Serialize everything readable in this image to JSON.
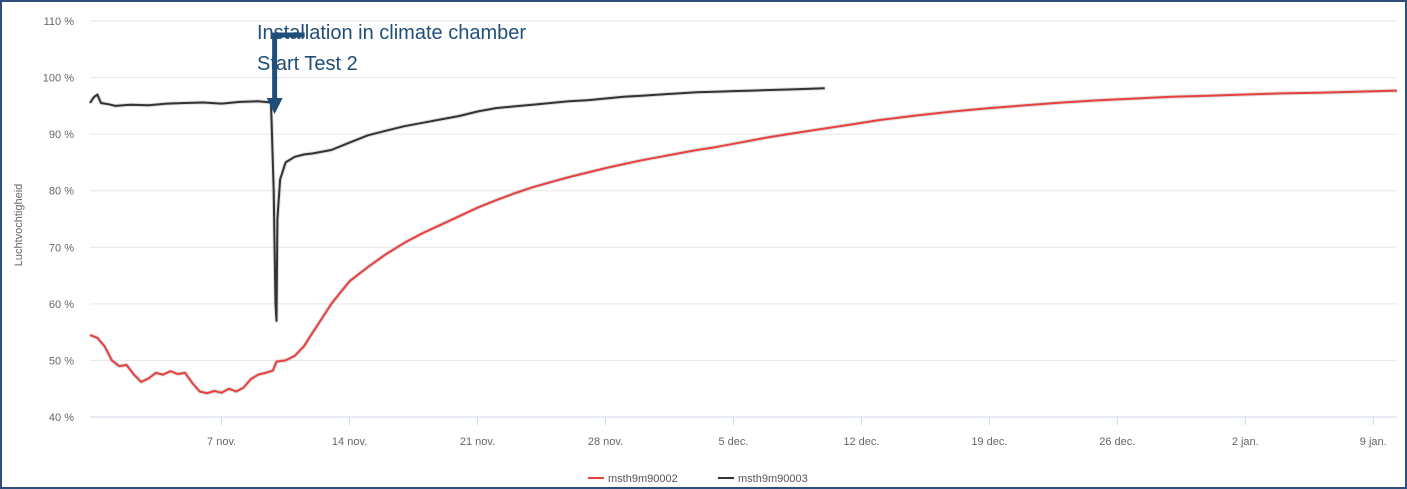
{
  "chart_data": {
    "type": "line",
    "ylabel": "Luchtvochtigheid",
    "ylim": [
      40,
      110
    ],
    "y_ticks": [
      40,
      50,
      60,
      70,
      80,
      90,
      100,
      110
    ],
    "y_tick_labels": [
      "40 %",
      "50 %",
      "60 %",
      "70 %",
      "80 %",
      "90 %",
      "100 %",
      "110 %"
    ],
    "xlim": [
      -5.2,
      66.3
    ],
    "x_ticks": [
      2,
      9,
      16,
      23,
      30,
      37,
      44,
      51,
      58,
      65
    ],
    "x_tick_labels": [
      "7 nov.",
      "14 nov.",
      "21 nov.",
      "28 nov.",
      "5 dec.",
      "12 dec.",
      "19 dec.",
      "26 dec.",
      "2 jan.",
      "9 jan."
    ],
    "grid": true,
    "annotation": {
      "lines": [
        "Installation in climate chamber",
        "Start Test 2"
      ],
      "x": 4.9
    },
    "legend_position": "bottom-center",
    "series": [
      {
        "name": "msth9m90002",
        "color": "#e8403f",
        "points": [
          [
            -5.2,
            54.5
          ],
          [
            -4.8,
            54
          ],
          [
            -4.4,
            52.5
          ],
          [
            -4,
            50
          ],
          [
            -3.6,
            49
          ],
          [
            -3.2,
            49.2
          ],
          [
            -2.8,
            47.5
          ],
          [
            -2.4,
            46.2
          ],
          [
            -2,
            46.8
          ],
          [
            -1.6,
            47.8
          ],
          [
            -1.2,
            47.5
          ],
          [
            -0.8,
            48.1
          ],
          [
            -0.4,
            47.6
          ],
          [
            0,
            47.8
          ],
          [
            0.4,
            46
          ],
          [
            0.8,
            44.5
          ],
          [
            1.2,
            44.2
          ],
          [
            1.6,
            44.6
          ],
          [
            2,
            44.3
          ],
          [
            2.4,
            45
          ],
          [
            2.8,
            44.5
          ],
          [
            3.2,
            45.2
          ],
          [
            3.6,
            46.7
          ],
          [
            4,
            47.5
          ],
          [
            4.4,
            47.8
          ],
          [
            4.8,
            48.2
          ],
          [
            5,
            49.8
          ],
          [
            5.5,
            50
          ],
          [
            6,
            50.8
          ],
          [
            6.5,
            52.5
          ],
          [
            7,
            55
          ],
          [
            7.5,
            57.5
          ],
          [
            8,
            60
          ],
          [
            8.5,
            62
          ],
          [
            9,
            64
          ],
          [
            10,
            66.5
          ],
          [
            11,
            68.8
          ],
          [
            12,
            70.8
          ],
          [
            13,
            72.5
          ],
          [
            14,
            74
          ],
          [
            15,
            75.5
          ],
          [
            16,
            77
          ],
          [
            17,
            78.3
          ],
          [
            18,
            79.5
          ],
          [
            19,
            80.6
          ],
          [
            20,
            81.5
          ],
          [
            21,
            82.4
          ],
          [
            22,
            83.2
          ],
          [
            23,
            84
          ],
          [
            24,
            84.7
          ],
          [
            25,
            85.4
          ],
          [
            26,
            86
          ],
          [
            27,
            86.6
          ],
          [
            28,
            87.2
          ],
          [
            29,
            87.7
          ],
          [
            30,
            88.3
          ],
          [
            32,
            89.5
          ],
          [
            34,
            90.5
          ],
          [
            36,
            91.5
          ],
          [
            38,
            92.5
          ],
          [
            40,
            93.3
          ],
          [
            42,
            94
          ],
          [
            44,
            94.6
          ],
          [
            46,
            95.1
          ],
          [
            48,
            95.6
          ],
          [
            50,
            96
          ],
          [
            52,
            96.3
          ],
          [
            54,
            96.6
          ],
          [
            56,
            96.8
          ],
          [
            58,
            97
          ],
          [
            60,
            97.2
          ],
          [
            62,
            97.3
          ],
          [
            64,
            97.5
          ],
          [
            66.3,
            97.7
          ]
        ]
      },
      {
        "name": "msth9m90003",
        "color": "#333333",
        "points": [
          [
            -5.2,
            95.5
          ],
          [
            -5,
            96.5
          ],
          [
            -4.8,
            97
          ],
          [
            -4.6,
            95.5
          ],
          [
            -4.2,
            95.3
          ],
          [
            -3.8,
            95
          ],
          [
            -3,
            95.2
          ],
          [
            -2,
            95.1
          ],
          [
            -1,
            95.4
          ],
          [
            0,
            95.5
          ],
          [
            1,
            95.6
          ],
          [
            2,
            95.4
          ],
          [
            3,
            95.7
          ],
          [
            4,
            95.8
          ],
          [
            4.7,
            95.6
          ],
          [
            4.85,
            80
          ],
          [
            4.95,
            60
          ],
          [
            5.0,
            57
          ],
          [
            5.05,
            75
          ],
          [
            5.2,
            82
          ],
          [
            5.5,
            85
          ],
          [
            6,
            86
          ],
          [
            6.5,
            86.4
          ],
          [
            7,
            86.6
          ],
          [
            8,
            87.2
          ],
          [
            9,
            88.5
          ],
          [
            10,
            89.8
          ],
          [
            11,
            90.6
          ],
          [
            12,
            91.4
          ],
          [
            13,
            92
          ],
          [
            14,
            92.6
          ],
          [
            15,
            93.2
          ],
          [
            16,
            94
          ],
          [
            17,
            94.6
          ],
          [
            18,
            94.9
          ],
          [
            19,
            95.2
          ],
          [
            20,
            95.5
          ],
          [
            21,
            95.8
          ],
          [
            22,
            96
          ],
          [
            23,
            96.3
          ],
          [
            24,
            96.6
          ],
          [
            25,
            96.8
          ],
          [
            26,
            97
          ],
          [
            27,
            97.2
          ],
          [
            28,
            97.4
          ],
          [
            29,
            97.5
          ],
          [
            30,
            97.6
          ],
          [
            31,
            97.7
          ],
          [
            32,
            97.8
          ],
          [
            33,
            97.9
          ],
          [
            34,
            98
          ],
          [
            35,
            98.1
          ]
        ]
      }
    ]
  }
}
